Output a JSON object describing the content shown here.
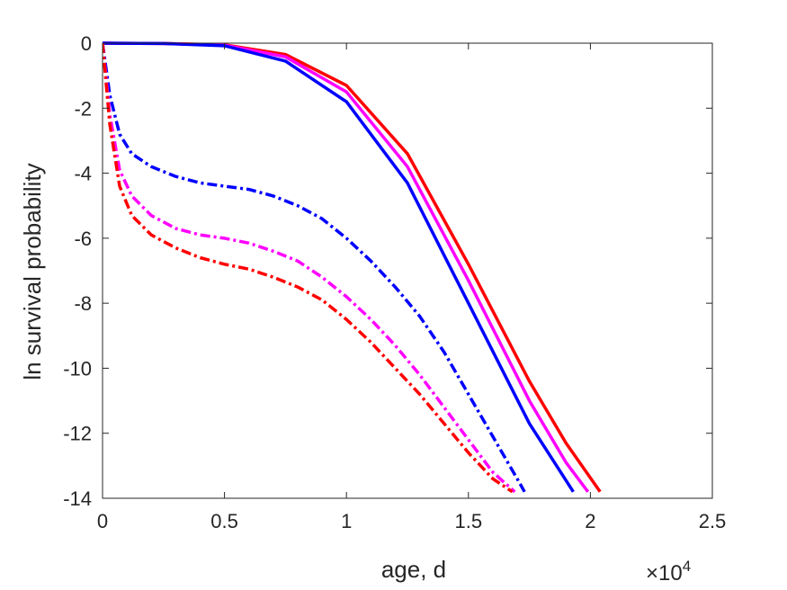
{
  "chart_data": {
    "type": "line",
    "title": "",
    "xlabel": "age, d",
    "ylabel": "ln survival probability",
    "x_exponent_label": {
      "base": "×10",
      "exp": "4"
    },
    "xlim": [
      0,
      25000
    ],
    "ylim": [
      -14,
      0
    ],
    "xticks": [
      0,
      5000,
      10000,
      15000,
      20000,
      25000
    ],
    "xtick_labels": [
      "0",
      "0.5",
      "1",
      "1.5",
      "2",
      "2.5"
    ],
    "yticks": [
      0,
      -2,
      -4,
      -6,
      -8,
      -10,
      -12,
      -14
    ],
    "ytick_labels": [
      "0",
      "-2",
      "-4",
      "-6",
      "-8",
      "-10",
      "-12",
      "-14"
    ],
    "grid": false,
    "legend": "none",
    "series": [
      {
        "color": "#ff0000",
        "style": "solid",
        "x": [
          0,
          2500,
          5000,
          7500,
          10000,
          12500,
          15000,
          17500,
          19000,
          20400
        ],
        "y": [
          0,
          -0.01,
          -0.05,
          -0.35,
          -1.3,
          -3.4,
          -6.8,
          -10.4,
          -12.3,
          -13.8
        ]
      },
      {
        "color": "#ff00ff",
        "style": "solid",
        "x": [
          0,
          2500,
          5000,
          7500,
          10000,
          12500,
          15000,
          17500,
          19000,
          19900
        ],
        "y": [
          0,
          -0.01,
          -0.06,
          -0.42,
          -1.5,
          -3.8,
          -7.3,
          -11.0,
          -12.9,
          -13.8
        ]
      },
      {
        "color": "#0000ff",
        "style": "solid",
        "x": [
          0,
          2500,
          5000,
          7500,
          10000,
          12500,
          15000,
          17500,
          19300
        ],
        "y": [
          0,
          -0.01,
          -0.08,
          -0.55,
          -1.8,
          -4.3,
          -8.0,
          -11.7,
          -13.8
        ]
      },
      {
        "color": "#0000ff",
        "style": "dashdot",
        "x": [
          0,
          300,
          700,
          1200,
          2000,
          3000,
          4000,
          5000,
          6000,
          7000,
          8000,
          9000,
          10000,
          11000,
          12000,
          13000,
          14000,
          15000,
          16000,
          17000,
          17300
        ],
        "y": [
          0,
          -1.6,
          -2.8,
          -3.4,
          -3.8,
          -4.1,
          -4.3,
          -4.4,
          -4.5,
          -4.7,
          -5.0,
          -5.4,
          -6.0,
          -6.7,
          -7.5,
          -8.4,
          -9.5,
          -10.8,
          -12.1,
          -13.4,
          -13.8
        ]
      },
      {
        "color": "#ff00ff",
        "style": "dashdot",
        "x": [
          0,
          300,
          700,
          1200,
          2000,
          3000,
          4000,
          5000,
          6000,
          7000,
          8000,
          9000,
          10000,
          11000,
          12000,
          13000,
          14000,
          15000,
          16000,
          16900
        ],
        "y": [
          0,
          -2.2,
          -3.9,
          -4.7,
          -5.3,
          -5.7,
          -5.9,
          -6.0,
          -6.15,
          -6.4,
          -6.7,
          -7.2,
          -7.8,
          -8.5,
          -9.3,
          -10.2,
          -11.2,
          -12.2,
          -13.2,
          -13.8
        ]
      },
      {
        "color": "#ff0000",
        "style": "dashdot",
        "x": [
          0,
          300,
          700,
          1200,
          2000,
          3000,
          4000,
          5000,
          6000,
          7000,
          8000,
          9000,
          10000,
          11000,
          12000,
          13000,
          14000,
          15000,
          16000,
          16800
        ],
        "y": [
          0,
          -2.5,
          -4.4,
          -5.3,
          -5.9,
          -6.3,
          -6.6,
          -6.8,
          -6.95,
          -7.2,
          -7.5,
          -7.9,
          -8.5,
          -9.2,
          -10.0,
          -10.8,
          -11.7,
          -12.6,
          -13.4,
          -13.8
        ]
      }
    ]
  }
}
